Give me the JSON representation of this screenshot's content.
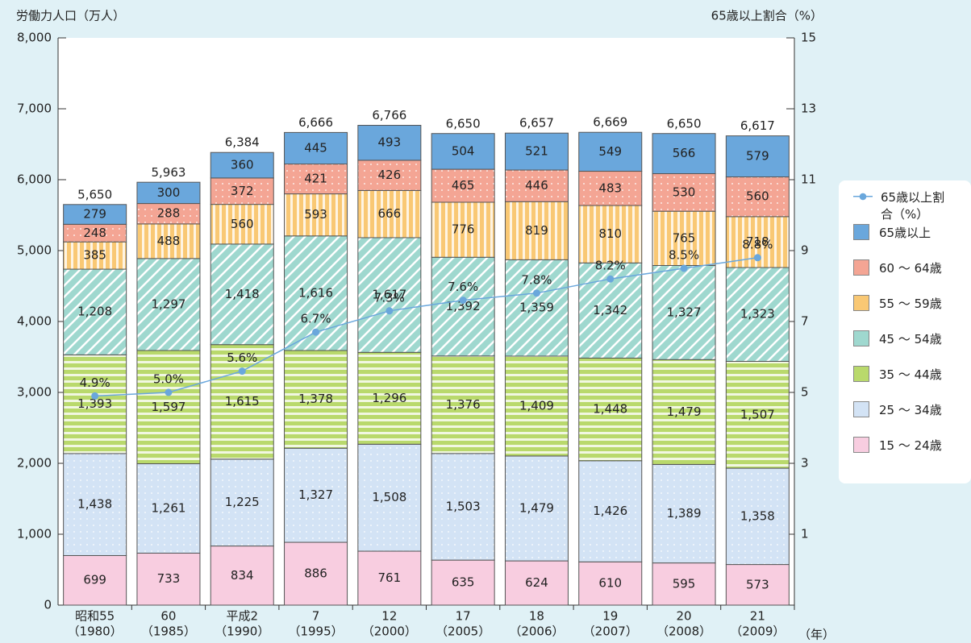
{
  "chart_data": {
    "type": "stacked-bar-line",
    "y_label": "労働力人口（万人）",
    "y2_label": "65歳以上割合（%）",
    "x_unit": "（年）",
    "categories": [
      "昭和55",
      "60",
      "平成2",
      "7",
      "12",
      "17",
      "18",
      "19",
      "20",
      "21"
    ],
    "category_sublabels": [
      "（1980）",
      "（1985）",
      "（1990）",
      "（1995）",
      "（2000）",
      "（2005）",
      "（2006）",
      "（2007）",
      "（2008）",
      "（2009）"
    ],
    "ylim": [
      0,
      8000
    ],
    "yticks": [
      0,
      {
        "value": 1000,
        "label": "1,000"
      },
      {
        "value": 2000,
        "label": "2,000"
      },
      {
        "value": 3000,
        "label": "3,000"
      },
      {
        "value": 4000,
        "label": "4,000"
      },
      {
        "value": 5000,
        "label": "5,000"
      },
      {
        "value": 6000,
        "label": "6,000"
      },
      {
        "value": 7000,
        "label": "7,000"
      },
      {
        "value": 8000,
        "label": "8,000"
      }
    ],
    "y2lim": [
      -1,
      15
    ],
    "y2ticks": [
      1,
      3,
      5,
      7,
      9,
      11,
      13,
      15
    ],
    "grid": false,
    "series": [
      {
        "name": "15 ～ 24歳",
        "color": "#f8cde0",
        "values": [
          699,
          733,
          834,
          886,
          761,
          635,
          624,
          610,
          595,
          573
        ],
        "value_labels": [
          "699",
          "733",
          "834",
          "886",
          "761",
          "635",
          "624",
          "610",
          "595",
          "573"
        ]
      },
      {
        "name": "25 ～ 34歳",
        "color": "#d3e3f5",
        "values": [
          1438,
          1261,
          1225,
          1327,
          1508,
          1503,
          1479,
          1426,
          1389,
          1358
        ],
        "value_labels": [
          "1,438",
          "1,261",
          "1,225",
          "1,327",
          "1,508",
          "1,503",
          "1,479",
          "1,426",
          "1,389",
          "1,358"
        ]
      },
      {
        "name": "35 ～ 44歳",
        "color": "#b9d96c",
        "values": [
          1393,
          1597,
          1615,
          1378,
          1296,
          1376,
          1409,
          1448,
          1479,
          1507
        ],
        "value_labels": [
          "1,393",
          "1,597",
          "1,615",
          "1,378",
          "1,296",
          "1,376",
          "1,409",
          "1,448",
          "1,479",
          "1,507"
        ]
      },
      {
        "name": "45 ～ 54歳",
        "color": "#9fd8cf",
        "values": [
          1208,
          1297,
          1418,
          1616,
          1617,
          1392,
          1359,
          1342,
          1327,
          1323
        ],
        "value_labels": [
          "1,208",
          "1,297",
          "1,418",
          "1,616",
          "1,617",
          "1,392",
          "1,359",
          "1,342",
          "1,327",
          "1,323"
        ]
      },
      {
        "name": "55 ～ 59歳",
        "color": "#f9c874",
        "values": [
          385,
          488,
          560,
          593,
          666,
          776,
          819,
          810,
          765,
          718
        ],
        "value_labels": [
          "385",
          "488",
          "560",
          "593",
          "666",
          "776",
          "819",
          "810",
          "765",
          "718"
        ]
      },
      {
        "name": "60 ～ 64歳",
        "color": "#f4a594",
        "values": [
          248,
          288,
          372,
          421,
          426,
          465,
          446,
          483,
          530,
          560
        ],
        "value_labels": [
          "248",
          "288",
          "372",
          "421",
          "426",
          "465",
          "446",
          "483",
          "530",
          "560"
        ]
      },
      {
        "name": "65歳以上",
        "color": "#6aa7dc",
        "values": [
          279,
          300,
          360,
          445,
          493,
          504,
          521,
          549,
          566,
          579
        ],
        "value_labels": [
          "279",
          "300",
          "360",
          "445",
          "493",
          "504",
          "521",
          "549",
          "566",
          "579"
        ]
      },
      {
        "name": "65歳以上割合（%）",
        "color": "#6aa7dc",
        "axis": "y2",
        "values": [
          4.9,
          5.0,
          5.6,
          6.7,
          7.3,
          7.6,
          7.8,
          8.2,
          8.5,
          8.8
        ],
        "value_labels": [
          "4.9%",
          "5.0%",
          "5.6%",
          "6.7%",
          "7.3%",
          "7.6%",
          "7.8%",
          "8.2%",
          "8.5%",
          "8.8%"
        ]
      }
    ],
    "totals": [
      5650,
      5963,
      6384,
      6666,
      6766,
      6650,
      6657,
      6669,
      6650,
      6617
    ],
    "total_labels": [
      "5,650",
      "5,963",
      "6,384",
      "6,666",
      "6,766",
      "6,650",
      "6,657",
      "6,669",
      "6,650",
      "6,617"
    ]
  }
}
